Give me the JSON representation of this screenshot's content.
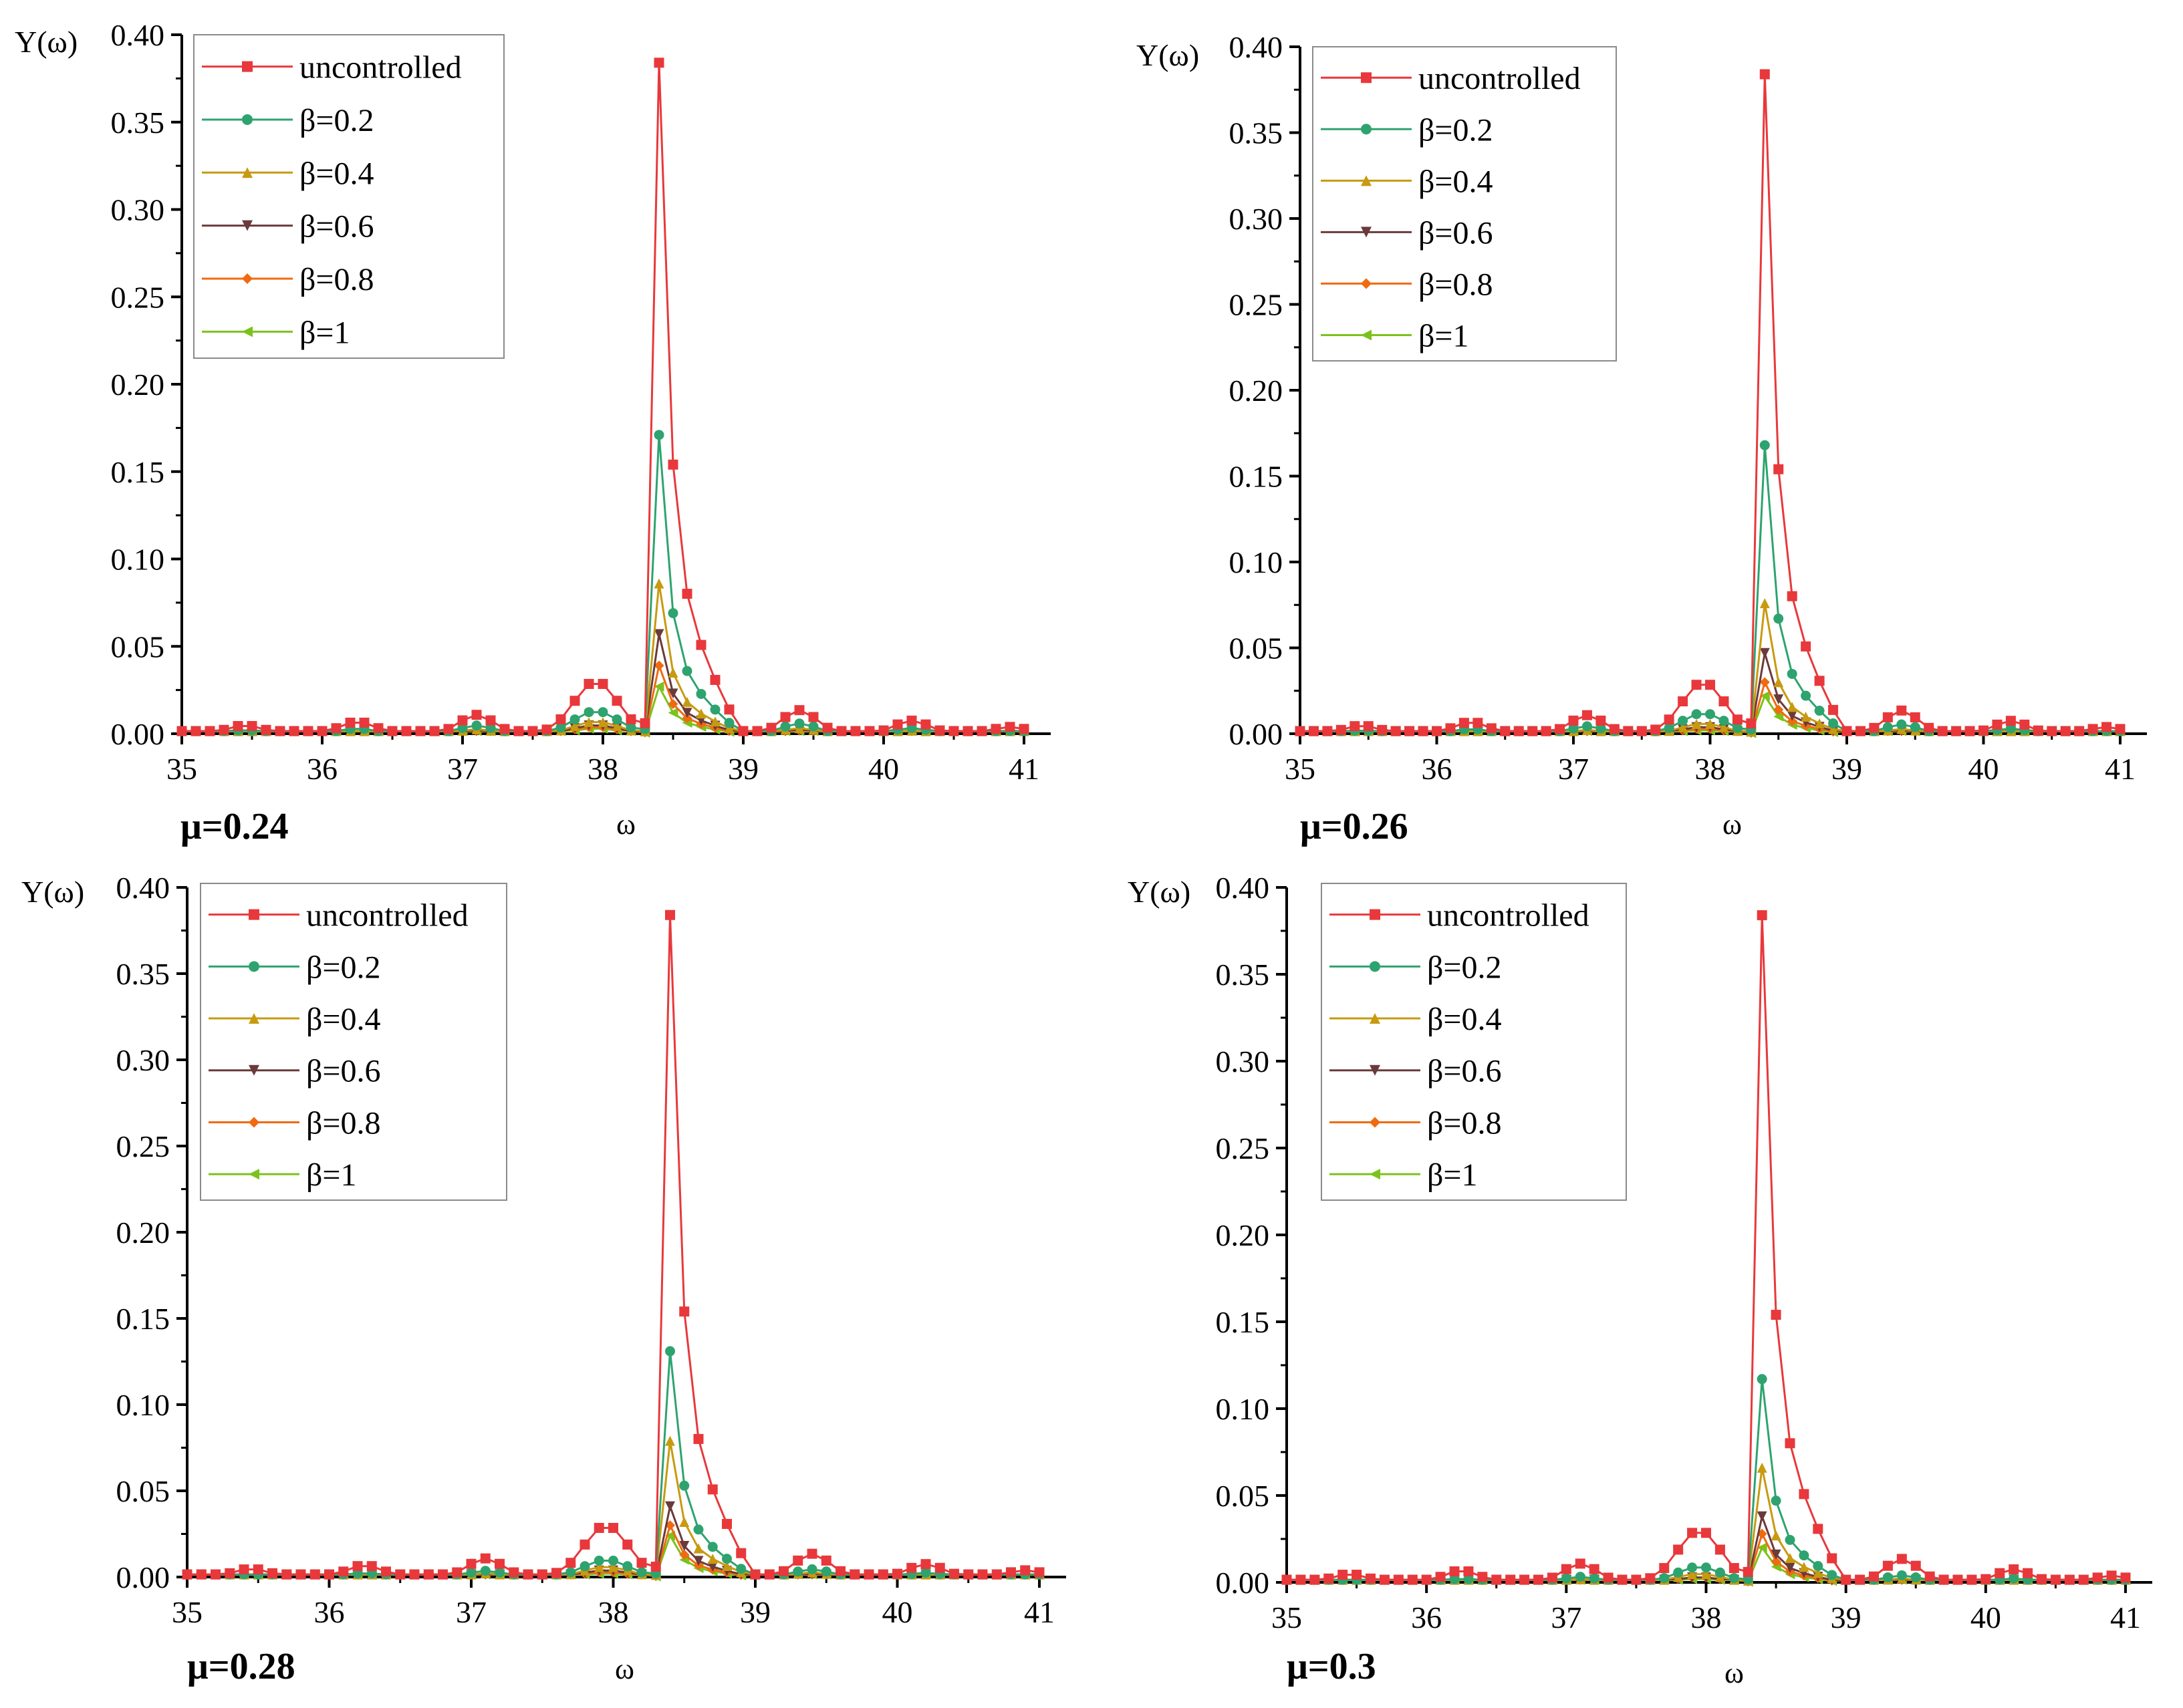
{
  "figure": {
    "colors": {
      "uncontrolled": "#e8383b",
      "beta02": "#2ea36f",
      "beta04": "#c79a10",
      "beta06": "#6b3a3a",
      "beta08": "#f06a10",
      "beta1": "#7cc21c",
      "axis": "#000000",
      "legend_border": "#8a8a8a"
    },
    "legend": [
      {
        "label": "uncontrolled",
        "marker": "square"
      },
      {
        "label": "β=0.2",
        "marker": "circle"
      },
      {
        "label": "β=0.4",
        "marker": "triangle-up"
      },
      {
        "label": "β=0.6",
        "marker": "triangle-down"
      },
      {
        "label": "β=0.8",
        "marker": "diamond"
      },
      {
        "label": "β=1",
        "marker": "triangle-left"
      }
    ]
  },
  "chart_data": [
    {
      "type": "line",
      "panel_label": "μ=0.24",
      "xlabel": "ω",
      "ylabel": "Y(ω)",
      "xlim": [
        35,
        41
      ],
      "ylim": [
        0,
        0.4
      ],
      "xticks": [
        "35",
        "36",
        "37",
        "38",
        "39",
        "40",
        "41"
      ],
      "yticks": [
        "0.00",
        "0.05",
        "0.10",
        "0.15",
        "0.20",
        "0.25",
        "0.30",
        "0.35",
        "0.40"
      ],
      "peak_omega": 38.4,
      "series": [
        {
          "name": "uncontrolled",
          "peak": 0.384,
          "right": 0.154,
          "side": 0.03
        },
        {
          "name": "β=0.2",
          "peak": 0.171,
          "right": 0.069,
          "side": 0.013
        },
        {
          "name": "β=0.4",
          "peak": 0.086,
          "right": 0.035,
          "side": 0.007
        },
        {
          "name": "β=0.6",
          "peak": 0.057,
          "right": 0.023,
          "side": 0.005
        },
        {
          "name": "β=0.8",
          "peak": 0.039,
          "right": 0.017,
          "side": 0.004
        },
        {
          "name": "β=1",
          "peak": 0.027,
          "right": 0.012,
          "side": 0.003
        }
      ]
    },
    {
      "type": "line",
      "panel_label": "μ=0.26",
      "xlabel": "ω",
      "ylabel": "Y(ω)",
      "xlim": [
        35,
        41
      ],
      "ylim": [
        0,
        0.4
      ],
      "xticks": [
        "35",
        "36",
        "37",
        "38",
        "39",
        "40",
        "41"
      ],
      "yticks": [
        "0.00",
        "0.05",
        "0.10",
        "0.15",
        "0.20",
        "0.25",
        "0.30",
        "0.35",
        "0.40"
      ],
      "peak_omega": 38.4,
      "series": [
        {
          "name": "uncontrolled",
          "peak": 0.384,
          "right": 0.154,
          "side": 0.03
        },
        {
          "name": "β=0.2",
          "peak": 0.168,
          "right": 0.067,
          "side": 0.012
        },
        {
          "name": "β=0.4",
          "peak": 0.076,
          "right": 0.03,
          "side": 0.006
        },
        {
          "name": "β=0.6",
          "peak": 0.047,
          "right": 0.02,
          "side": 0.004
        },
        {
          "name": "β=0.8",
          "peak": 0.03,
          "right": 0.014,
          "side": 0.003
        },
        {
          "name": "β=1",
          "peak": 0.022,
          "right": 0.01,
          "side": 0.002
        }
      ]
    },
    {
      "type": "line",
      "panel_label": "μ=0.28",
      "xlabel": "ω",
      "ylabel": "Y(ω)",
      "xlim": [
        35,
        41
      ],
      "ylim": [
        0,
        0.4
      ],
      "xticks": [
        "35",
        "36",
        "37",
        "38",
        "39",
        "40",
        "41"
      ],
      "yticks": [
        "0.00",
        "0.05",
        "0.10",
        "0.15",
        "0.20",
        "0.25",
        "0.30",
        "0.35",
        "0.40"
      ],
      "peak_omega": 38.4,
      "series": [
        {
          "name": "uncontrolled",
          "peak": 0.384,
          "right": 0.154,
          "side": 0.03
        },
        {
          "name": "β=0.2",
          "peak": 0.131,
          "right": 0.053,
          "side": 0.01
        },
        {
          "name": "β=0.4",
          "peak": 0.079,
          "right": 0.032,
          "side": 0.006
        },
        {
          "name": "β=0.6",
          "peak": 0.041,
          "right": 0.018,
          "side": 0.004
        },
        {
          "name": "β=0.8",
          "peak": 0.03,
          "right": 0.013,
          "side": 0.003
        },
        {
          "name": "β=1",
          "peak": 0.024,
          "right": 0.01,
          "side": 0.002
        }
      ]
    },
    {
      "type": "line",
      "panel_label": "μ=0.3",
      "xlabel": "ω",
      "ylabel": "Y(ω)",
      "xlim": [
        35,
        41
      ],
      "ylim": [
        0,
        0.4
      ],
      "xticks": [
        "35",
        "36",
        "37",
        "38",
        "39",
        "40",
        "41"
      ],
      "yticks": [
        "0.00",
        "0.05",
        "0.10",
        "0.15",
        "0.20",
        "0.25",
        "0.30",
        "0.35",
        "0.40"
      ],
      "peak_omega": 38.4,
      "series": [
        {
          "name": "uncontrolled",
          "peak": 0.384,
          "right": 0.154,
          "side": 0.03
        },
        {
          "name": "β=0.2",
          "peak": 0.117,
          "right": 0.047,
          "side": 0.009
        },
        {
          "name": "β=0.4",
          "peak": 0.066,
          "right": 0.027,
          "side": 0.005
        },
        {
          "name": "β=0.6",
          "peak": 0.038,
          "right": 0.016,
          "side": 0.003
        },
        {
          "name": "β=0.8",
          "peak": 0.028,
          "right": 0.012,
          "side": 0.003
        },
        {
          "name": "β=1",
          "peak": 0.02,
          "right": 0.009,
          "side": 0.002
        }
      ]
    }
  ]
}
